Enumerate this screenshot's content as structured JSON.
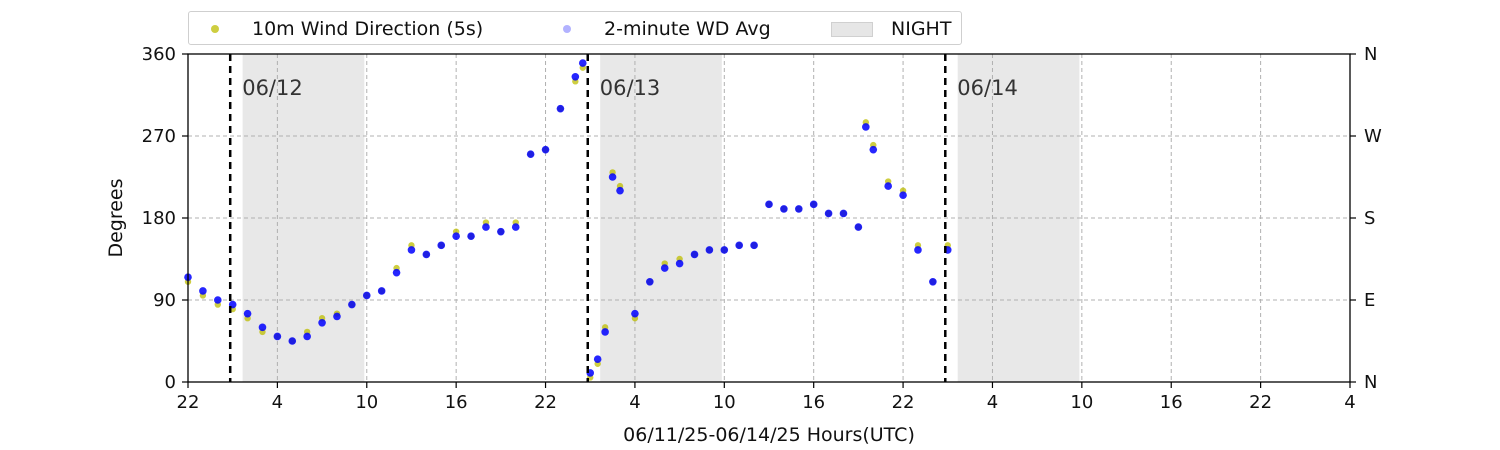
{
  "chart_data": {
    "type": "scatter",
    "title": "",
    "xlabel": "06/11/25-06/14/25  Hours(UTC)",
    "ylabel": "Degrees",
    "x_unit": "hours",
    "xlim": [
      "06/11 22:00",
      "06/15 04:00"
    ],
    "ylim": [
      0,
      360
    ],
    "yticks": [
      0,
      90,
      180,
      270,
      360
    ],
    "xtick_labels": [
      "22",
      "4",
      "10",
      "16",
      "22",
      "4",
      "10",
      "16",
      "22",
      "4",
      "10",
      "16",
      "22",
      "4"
    ],
    "right_axis_labels": [
      "N",
      "E",
      "S",
      "W",
      "N"
    ],
    "grid": true,
    "legend_position": "top",
    "legend": [
      "10m Wind Direction (5s)",
      "2-minute WD Avg",
      "NIGHT"
    ],
    "colors": {
      "wind_5s": "#bdbd00",
      "avg_2min": "#0000ff",
      "night": "#e6e6e6"
    },
    "day_markers": [
      {
        "label": "06/12",
        "time": "06/12 00:50"
      },
      {
        "label": "06/13",
        "time": "06/13 00:50"
      },
      {
        "label": "06/14",
        "time": "06/14 00:50"
      }
    ],
    "night_periods": [
      [
        "06/12 01:40",
        "06/12 09:50"
      ],
      [
        "06/13 01:40",
        "06/13 09:50"
      ],
      [
        "06/14 01:40",
        "06/14 09:50"
      ]
    ],
    "series": [
      {
        "name": "10m Wind Direction (5s)",
        "x": [
          "06/11 22:00",
          "06/11 23:00",
          "06/12 00:00",
          "06/12 01:00",
          "06/12 02:00",
          "06/12 03:00",
          "06/12 04:00",
          "06/12 05:00",
          "06/12 06:00",
          "06/12 07:00",
          "06/12 08:00",
          "06/12 09:00",
          "06/12 10:00",
          "06/12 11:00",
          "06/12 12:00",
          "06/12 13:00",
          "06/12 14:00",
          "06/12 15:00",
          "06/12 16:00",
          "06/12 17:00",
          "06/12 18:00",
          "06/12 19:00",
          "06/12 20:00",
          "06/12 21:00",
          "06/12 22:00",
          "06/12 23:00",
          "06/13 00:00",
          "06/13 00:30",
          "06/13 01:00",
          "06/13 01:30",
          "06/13 02:00",
          "06/13 02:30",
          "06/13 03:00",
          "06/13 04:00",
          "06/13 05:00",
          "06/13 06:00",
          "06/13 07:00",
          "06/13 08:00",
          "06/13 09:00",
          "06/13 10:00",
          "06/13 11:00",
          "06/13 12:00",
          "06/13 13:00",
          "06/13 14:00",
          "06/13 15:00",
          "06/13 16:00",
          "06/13 17:00",
          "06/13 18:00",
          "06/13 19:00",
          "06/13 19:30",
          "06/13 20:00",
          "06/13 21:00",
          "06/13 22:00",
          "06/13 23:00",
          "06/14 00:00",
          "06/14 01:00"
        ],
        "y": [
          110,
          95,
          85,
          80,
          70,
          55,
          50,
          45,
          55,
          70,
          75,
          85,
          95,
          100,
          125,
          150,
          140,
          150,
          165,
          160,
          175,
          165,
          175,
          250,
          255,
          300,
          330,
          345,
          5,
          20,
          60,
          230,
          215,
          70,
          110,
          130,
          135,
          140,
          145,
          145,
          150,
          150,
          195,
          190,
          190,
          195,
          185,
          185,
          170,
          285,
          260,
          220,
          210,
          150,
          110,
          150
        ]
      },
      {
        "name": "2-minute WD Avg",
        "x": [
          "06/11 22:00",
          "06/11 23:00",
          "06/12 00:00",
          "06/12 01:00",
          "06/12 02:00",
          "06/12 03:00",
          "06/12 04:00",
          "06/12 05:00",
          "06/12 06:00",
          "06/12 07:00",
          "06/12 08:00",
          "06/12 09:00",
          "06/12 10:00",
          "06/12 11:00",
          "06/12 12:00",
          "06/12 13:00",
          "06/12 14:00",
          "06/12 15:00",
          "06/12 16:00",
          "06/12 17:00",
          "06/12 18:00",
          "06/12 19:00",
          "06/12 20:00",
          "06/12 21:00",
          "06/12 22:00",
          "06/12 23:00",
          "06/13 00:00",
          "06/13 00:30",
          "06/13 01:00",
          "06/13 01:30",
          "06/13 02:00",
          "06/13 02:30",
          "06/13 03:00",
          "06/13 04:00",
          "06/13 05:00",
          "06/13 06:00",
          "06/13 07:00",
          "06/13 08:00",
          "06/13 09:00",
          "06/13 10:00",
          "06/13 11:00",
          "06/13 12:00",
          "06/13 13:00",
          "06/13 14:00",
          "06/13 15:00",
          "06/13 16:00",
          "06/13 17:00",
          "06/13 18:00",
          "06/13 19:00",
          "06/13 19:30",
          "06/13 20:00",
          "06/13 21:00",
          "06/13 22:00",
          "06/13 23:00",
          "06/14 00:00",
          "06/14 01:00"
        ],
        "y": [
          115,
          100,
          90,
          85,
          75,
          60,
          50,
          45,
          50,
          65,
          72,
          85,
          95,
          100,
          120,
          145,
          140,
          150,
          160,
          160,
          170,
          165,
          170,
          250,
          255,
          300,
          335,
          350,
          10,
          25,
          55,
          225,
          210,
          75,
          110,
          125,
          130,
          140,
          145,
          145,
          150,
          150,
          195,
          190,
          190,
          195,
          185,
          185,
          170,
          280,
          255,
          215,
          205,
          145,
          110,
          145
        ]
      }
    ]
  }
}
